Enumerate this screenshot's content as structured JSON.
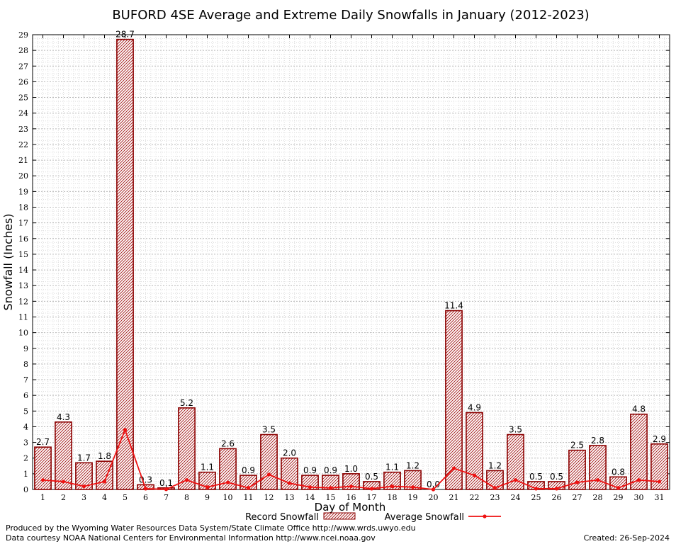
{
  "chart_data": {
    "type": "bar",
    "title": "BUFORD 4SE Average and Extreme Daily Snowfalls in January (2012-2023)",
    "xlabel": "Day of Month",
    "ylabel": "Snowfall (Inches)",
    "ylim": [
      0,
      29
    ],
    "yticks": [
      0,
      1,
      2,
      3,
      4,
      5,
      6,
      7,
      8,
      9,
      10,
      11,
      12,
      13,
      14,
      15,
      16,
      17,
      18,
      19,
      20,
      21,
      22,
      23,
      24,
      25,
      26,
      27,
      28,
      29
    ],
    "categories": [
      "1",
      "2",
      "3",
      "4",
      "5",
      "6",
      "7",
      "8",
      "9",
      "10",
      "11",
      "12",
      "13",
      "14",
      "15",
      "16",
      "17",
      "18",
      "19",
      "20",
      "21",
      "22",
      "23",
      "24",
      "25",
      "26",
      "27",
      "28",
      "29",
      "30",
      "31"
    ],
    "grid": true,
    "legend_position": "bottom-center",
    "series": [
      {
        "name": "Record Snowfall",
        "type": "bar",
        "color": "#8b0000",
        "values": [
          2.7,
          4.3,
          1.7,
          1.8,
          28.7,
          0.3,
          0.1,
          5.2,
          1.1,
          2.6,
          0.9,
          3.5,
          2.0,
          0.9,
          0.9,
          1.0,
          0.5,
          1.1,
          1.2,
          0.0,
          11.4,
          4.9,
          1.2,
          3.5,
          0.5,
          0.5,
          2.5,
          2.8,
          0.8,
          4.8,
          2.9
        ],
        "labels": [
          "2.7",
          "4.3",
          "1.7",
          "1.8",
          "28.7",
          "0.3",
          "0.1",
          "5.2",
          "1.1",
          "2.6",
          "0.9",
          "3.5",
          "2.0",
          "0.9",
          "0.9",
          "1.0",
          "0.5",
          "1.1",
          "1.2",
          "0.0",
          "11.4",
          "4.9",
          "1.2",
          "3.5",
          "0.5",
          "0.5",
          "2.5",
          "2.8",
          "0.8",
          "4.8",
          "2.9"
        ]
      },
      {
        "name": "Average Snowfall",
        "type": "line",
        "color": "#ee1111",
        "values": [
          0.6,
          0.5,
          0.2,
          0.5,
          3.8,
          0.05,
          0.01,
          0.6,
          0.15,
          0.45,
          0.1,
          0.95,
          0.4,
          0.15,
          0.1,
          0.2,
          0.05,
          0.2,
          0.15,
          0.0,
          1.35,
          0.9,
          0.1,
          0.6,
          0.05,
          0.05,
          0.45,
          0.6,
          0.1,
          0.6,
          0.5
        ]
      }
    ]
  },
  "footer": {
    "produced_by": "Produced by the Wyoming Water Resources Data System/State Climate Office http://www.wrds.uwyo.edu",
    "data_courtesy": "Data courtesy NOAA National Centers for Environmental Information http://www.ncei.noaa.gov",
    "created": "Created:  26-Sep-2024"
  }
}
